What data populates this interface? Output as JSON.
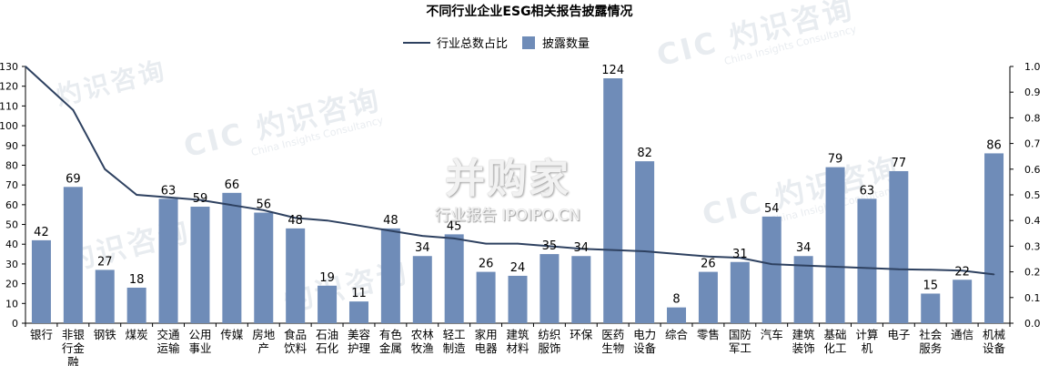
{
  "chart_data": {
    "type": "bar",
    "title": "不同行业企业ESG相关报告披露情况",
    "categories": [
      [
        "银行"
      ],
      [
        "非银",
        "行金",
        "融"
      ],
      [
        "钢铁"
      ],
      [
        "煤炭"
      ],
      [
        "交通",
        "运输"
      ],
      [
        "公用",
        "事业"
      ],
      [
        "传媒"
      ],
      [
        "房地",
        "产"
      ],
      [
        "食品",
        "饮料"
      ],
      [
        "石油",
        "石化"
      ],
      [
        "美容",
        "护理"
      ],
      [
        "有色",
        "金属"
      ],
      [
        "农林",
        "牧渔"
      ],
      [
        "轻工",
        "制造"
      ],
      [
        "家用",
        "电器"
      ],
      [
        "建筑",
        "材料"
      ],
      [
        "纺织",
        "服饰"
      ],
      [
        "环保"
      ],
      [
        "医药",
        "生物"
      ],
      [
        "电力",
        "设备"
      ],
      [
        "综合"
      ],
      [
        "零售"
      ],
      [
        "国防",
        "军工"
      ],
      [
        "汽车"
      ],
      [
        "建筑",
        "装饰"
      ],
      [
        "基础",
        "化工"
      ],
      [
        "计算",
        "机"
      ],
      [
        "电子"
      ],
      [
        "社会",
        "服务"
      ],
      [
        "通信"
      ],
      [
        "机械",
        "设备"
      ]
    ],
    "series": [
      {
        "name": "披露数量",
        "kind": "bar",
        "axis": "left",
        "color": "#6f8cb8",
        "values": [
          42,
          69,
          27,
          18,
          63,
          59,
          66,
          56,
          48,
          19,
          11,
          48,
          34,
          45,
          26,
          24,
          35,
          34,
          124,
          82,
          8,
          26,
          31,
          54,
          34,
          79,
          63,
          77,
          15,
          22,
          86
        ]
      },
      {
        "name": "行业总数占比",
        "kind": "line",
        "axis": "right",
        "color": "#2e4160",
        "values": [
          1.0,
          0.83,
          0.6,
          0.5,
          0.49,
          0.48,
          0.46,
          0.44,
          0.41,
          0.4,
          0.38,
          0.36,
          0.34,
          0.33,
          0.31,
          0.31,
          0.3,
          0.29,
          0.285,
          0.28,
          0.27,
          0.26,
          0.255,
          0.23,
          0.225,
          0.22,
          0.215,
          0.21,
          0.208,
          0.205,
          0.19
        ]
      }
    ],
    "y_left": {
      "min": 0,
      "max": 130,
      "step": 10
    },
    "y_right": {
      "min": 0,
      "max": 1.0,
      "step": 0.1
    },
    "legend_position": "top-center",
    "grid": false
  },
  "watermark": {
    "cic_logo": "CIC",
    "cic_cn": "灼识咨询",
    "cic_en": "China Insights Consultancy",
    "center_cn": "并购家",
    "center_sub": "行业报告 IPOIPO.CN"
  }
}
